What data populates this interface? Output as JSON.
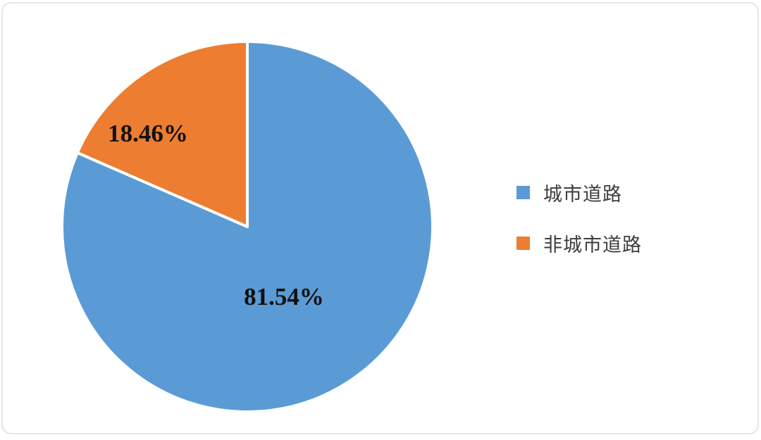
{
  "panel": {
    "background": "#ffffff",
    "border_color": "#e4e4ee"
  },
  "chart_data": {
    "type": "pie",
    "title": "",
    "slices": [
      {
        "label": "城市道路",
        "value": 81.54,
        "display_label": "81.54%",
        "color": "#5B9BD5"
      },
      {
        "label": "非城市道路",
        "value": 18.46,
        "display_label": "18.46%",
        "color": "#ED7D31"
      }
    ],
    "start_angle_deg": 0,
    "direction": "clockwise",
    "slice_border_color": "#ffffff",
    "slice_border_width": 4,
    "legend_position": "right",
    "data_label_color": "#111111"
  }
}
